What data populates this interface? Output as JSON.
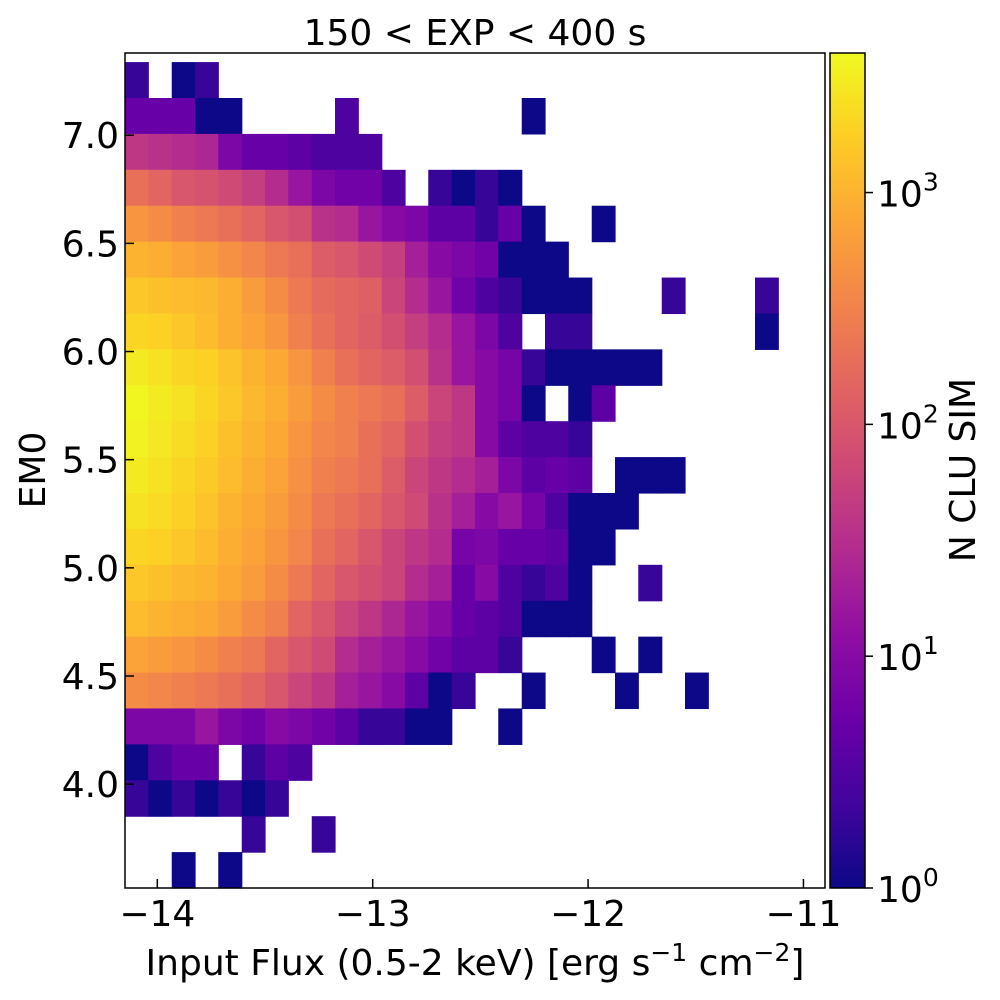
{
  "chart_data": {
    "type": "heatmap",
    "title": "150 < EXP < 400 s",
    "xlabel": "Input Flux (0.5-2 keV) [erg s",
    "xlabel_sup1": "−1",
    "xlabel_mid": " cm",
    "xlabel_sup2": "−2",
    "xlabel_end": "]",
    "ylabel": "EM0",
    "colorbar_label": "N CLU SIM",
    "colormap": "plasma",
    "color_scale": "log",
    "clim": [
      1,
      4000
    ],
    "grid": false,
    "xlim": [
      -14.15,
      -10.9
    ],
    "ylim": [
      3.52,
      7.38
    ],
    "x_bin_edges": [
      -14.15,
      -14.042,
      -13.933,
      -13.825,
      -13.717,
      -13.608,
      -13.5,
      -13.392,
      -13.283,
      -13.175,
      -13.067,
      -12.958,
      -12.85,
      -12.742,
      -12.633,
      -12.525,
      -12.417,
      -12.308,
      -12.2,
      -12.092,
      -11.983,
      -11.875,
      -11.767,
      -11.658,
      -11.55,
      -11.442,
      -11.333,
      -11.225,
      -11.117,
      -11.008,
      -10.9
    ],
    "y_bin_edges": [
      3.52,
      3.686,
      3.852,
      4.018,
      4.184,
      4.35,
      4.516,
      4.682,
      4.848,
      5.014,
      5.18,
      5.346,
      5.512,
      5.678,
      5.844,
      6.01,
      6.176,
      6.342,
      6.508,
      6.674,
      6.84,
      7.006,
      7.172,
      7.338
    ],
    "xticks": [
      -14,
      -13,
      -12,
      -11
    ],
    "xtick_labels": [
      "−14",
      "−13",
      "−12",
      "−11"
    ],
    "yticks": [
      4.0,
      4.5,
      5.0,
      5.5,
      6.0,
      6.5,
      7.0
    ],
    "ytick_labels": [
      "4.0",
      "4.5",
      "5.0",
      "5.5",
      "6.0",
      "6.5",
      "7.0"
    ],
    "colorbar_ticks": [
      1,
      10,
      100,
      1000
    ],
    "colorbar_tick_base": "10",
    "colorbar_tick_exps": [
      "0",
      "1",
      "2",
      "3"
    ],
    "counts_rows_top_to_bottom": [
      [
        2,
        0,
        1,
        2,
        0,
        0,
        0,
        0,
        0,
        0,
        0,
        0,
        0,
        0,
        0,
        0,
        0,
        0,
        0,
        0,
        0,
        0,
        0,
        0,
        0,
        0,
        0,
        0,
        0,
        0
      ],
      [
        5,
        5,
        5,
        1,
        1,
        0,
        0,
        0,
        0,
        3,
        0,
        0,
        0,
        0,
        0,
        0,
        0,
        1,
        0,
        0,
        0,
        0,
        0,
        0,
        0,
        0,
        0,
        0,
        0,
        0
      ],
      [
        40,
        35,
        30,
        25,
        8,
        5,
        5,
        4,
        3,
        3,
        3,
        0,
        0,
        0,
        0,
        0,
        0,
        0,
        0,
        0,
        0,
        0,
        0,
        0,
        0,
        0,
        0,
        0,
        0,
        0
      ],
      [
        200,
        150,
        100,
        90,
        70,
        50,
        30,
        15,
        8,
        6,
        6,
        3,
        0,
        2,
        1,
        2,
        1,
        0,
        0,
        0,
        0,
        0,
        0,
        0,
        0,
        0,
        0,
        0,
        0,
        0
      ],
      [
        500,
        400,
        300,
        250,
        200,
        150,
        100,
        80,
        35,
        30,
        15,
        10,
        8,
        4,
        4,
        2,
        5,
        1,
        0,
        0,
        1,
        0,
        0,
        0,
        0,
        0,
        0,
        0,
        0,
        0
      ],
      [
        1000,
        900,
        700,
        600,
        450,
        350,
        250,
        200,
        120,
        100,
        70,
        50,
        20,
        10,
        8,
        6,
        1,
        1,
        1,
        0,
        0,
        0,
        0,
        0,
        0,
        0,
        0,
        0,
        0,
        0
      ],
      [
        1500,
        1300,
        1200,
        1100,
        900,
        600,
        400,
        250,
        180,
        150,
        130,
        60,
        30,
        15,
        6,
        3,
        2,
        1,
        1,
        1,
        0,
        0,
        0,
        2,
        0,
        0,
        0,
        2,
        0,
        0
      ],
      [
        2000,
        1800,
        1500,
        1200,
        900,
        700,
        500,
        300,
        200,
        150,
        120,
        80,
        50,
        30,
        15,
        8,
        3,
        0,
        2,
        2,
        0,
        0,
        0,
        0,
        0,
        0,
        0,
        1,
        0,
        0
      ],
      [
        3000,
        2500,
        2000,
        1800,
        1400,
        1000,
        800,
        500,
        300,
        200,
        150,
        120,
        80,
        35,
        15,
        10,
        7,
        2,
        1,
        1,
        1,
        1,
        1,
        0,
        0,
        0,
        0,
        0,
        0,
        0
      ],
      [
        3800,
        3000,
        2500,
        2000,
        1500,
        1100,
        900,
        600,
        400,
        300,
        250,
        200,
        120,
        60,
        40,
        10,
        7,
        1,
        0,
        1,
        4,
        0,
        0,
        0,
        0,
        0,
        0,
        0,
        0,
        0
      ],
      [
        3500,
        2800,
        2300,
        1800,
        1300,
        1000,
        800,
        500,
        350,
        300,
        200,
        150,
        80,
        50,
        40,
        10,
        4,
        3,
        3,
        2,
        0,
        0,
        0,
        0,
        0,
        0,
        0,
        0,
        0,
        0
      ],
      [
        3000,
        2500,
        2000,
        1600,
        1200,
        900,
        700,
        450,
        300,
        250,
        200,
        120,
        60,
        40,
        30,
        20,
        8,
        4,
        5,
        4,
        0,
        1,
        1,
        1,
        0,
        0,
        0,
        0,
        0,
        0
      ],
      [
        2500,
        2200,
        1800,
        1400,
        1000,
        800,
        600,
        400,
        250,
        200,
        150,
        100,
        70,
        35,
        20,
        10,
        15,
        7,
        3,
        1,
        1,
        1,
        0,
        0,
        0,
        0,
        0,
        0,
        0,
        0
      ],
      [
        2000,
        1800,
        1500,
        1200,
        900,
        700,
        500,
        350,
        200,
        150,
        100,
        60,
        40,
        30,
        7,
        8,
        5,
        5,
        4,
        1,
        1,
        0,
        0,
        0,
        0,
        0,
        0,
        0,
        0,
        0
      ],
      [
        1500,
        1300,
        1100,
        1000,
        800,
        600,
        400,
        250,
        150,
        100,
        80,
        60,
        30,
        20,
        5,
        10,
        3,
        2,
        3,
        1,
        0,
        0,
        2,
        0,
        0,
        0,
        0,
        0,
        0,
        0
      ],
      [
        1200,
        1000,
        900,
        800,
        600,
        400,
        300,
        150,
        100,
        60,
        40,
        25,
        15,
        10,
        5,
        4,
        3,
        1,
        1,
        1,
        0,
        0,
        0,
        0,
        0,
        0,
        0,
        0,
        0,
        0
      ],
      [
        700,
        600,
        500,
        400,
        300,
        250,
        150,
        100,
        70,
        30,
        20,
        15,
        10,
        6,
        4,
        4,
        2,
        0,
        0,
        0,
        1,
        0,
        1,
        0,
        0,
        0,
        0,
        0,
        0,
        0
      ],
      [
        400,
        350,
        300,
        250,
        200,
        150,
        100,
        60,
        40,
        20,
        15,
        10,
        4,
        1,
        2,
        0,
        0,
        1,
        0,
        0,
        0,
        1,
        0,
        0,
        1,
        0,
        0,
        0,
        0,
        0
      ],
      [
        8,
        8,
        8,
        15,
        8,
        6,
        10,
        8,
        6,
        4,
        2,
        2,
        1,
        1,
        0,
        0,
        1,
        0,
        0,
        0,
        0,
        0,
        0,
        0,
        0,
        0,
        0,
        0,
        0,
        0
      ],
      [
        1,
        3,
        5,
        5,
        0,
        2,
        4,
        3,
        0,
        0,
        0,
        0,
        0,
        0,
        0,
        0,
        0,
        0,
        0,
        0,
        0,
        0,
        0,
        0,
        0,
        0,
        0,
        0,
        0,
        0
      ],
      [
        2,
        1,
        2,
        1,
        2,
        1,
        2,
        0,
        0,
        0,
        0,
        0,
        0,
        0,
        0,
        0,
        0,
        0,
        0,
        0,
        0,
        0,
        0,
        0,
        0,
        0,
        0,
        0,
        0,
        0
      ],
      [
        0,
        0,
        0,
        0,
        0,
        2,
        0,
        0,
        2,
        0,
        0,
        0,
        0,
        0,
        0,
        0,
        0,
        0,
        0,
        0,
        0,
        0,
        0,
        0,
        0,
        0,
        0,
        0,
        0,
        0
      ],
      [
        0,
        0,
        1,
        0,
        1,
        0,
        0,
        0,
        0,
        0,
        0,
        0,
        0,
        0,
        0,
        0,
        0,
        0,
        0,
        0,
        0,
        0,
        0,
        0,
        0,
        0,
        0,
        0,
        0,
        0
      ]
    ]
  }
}
